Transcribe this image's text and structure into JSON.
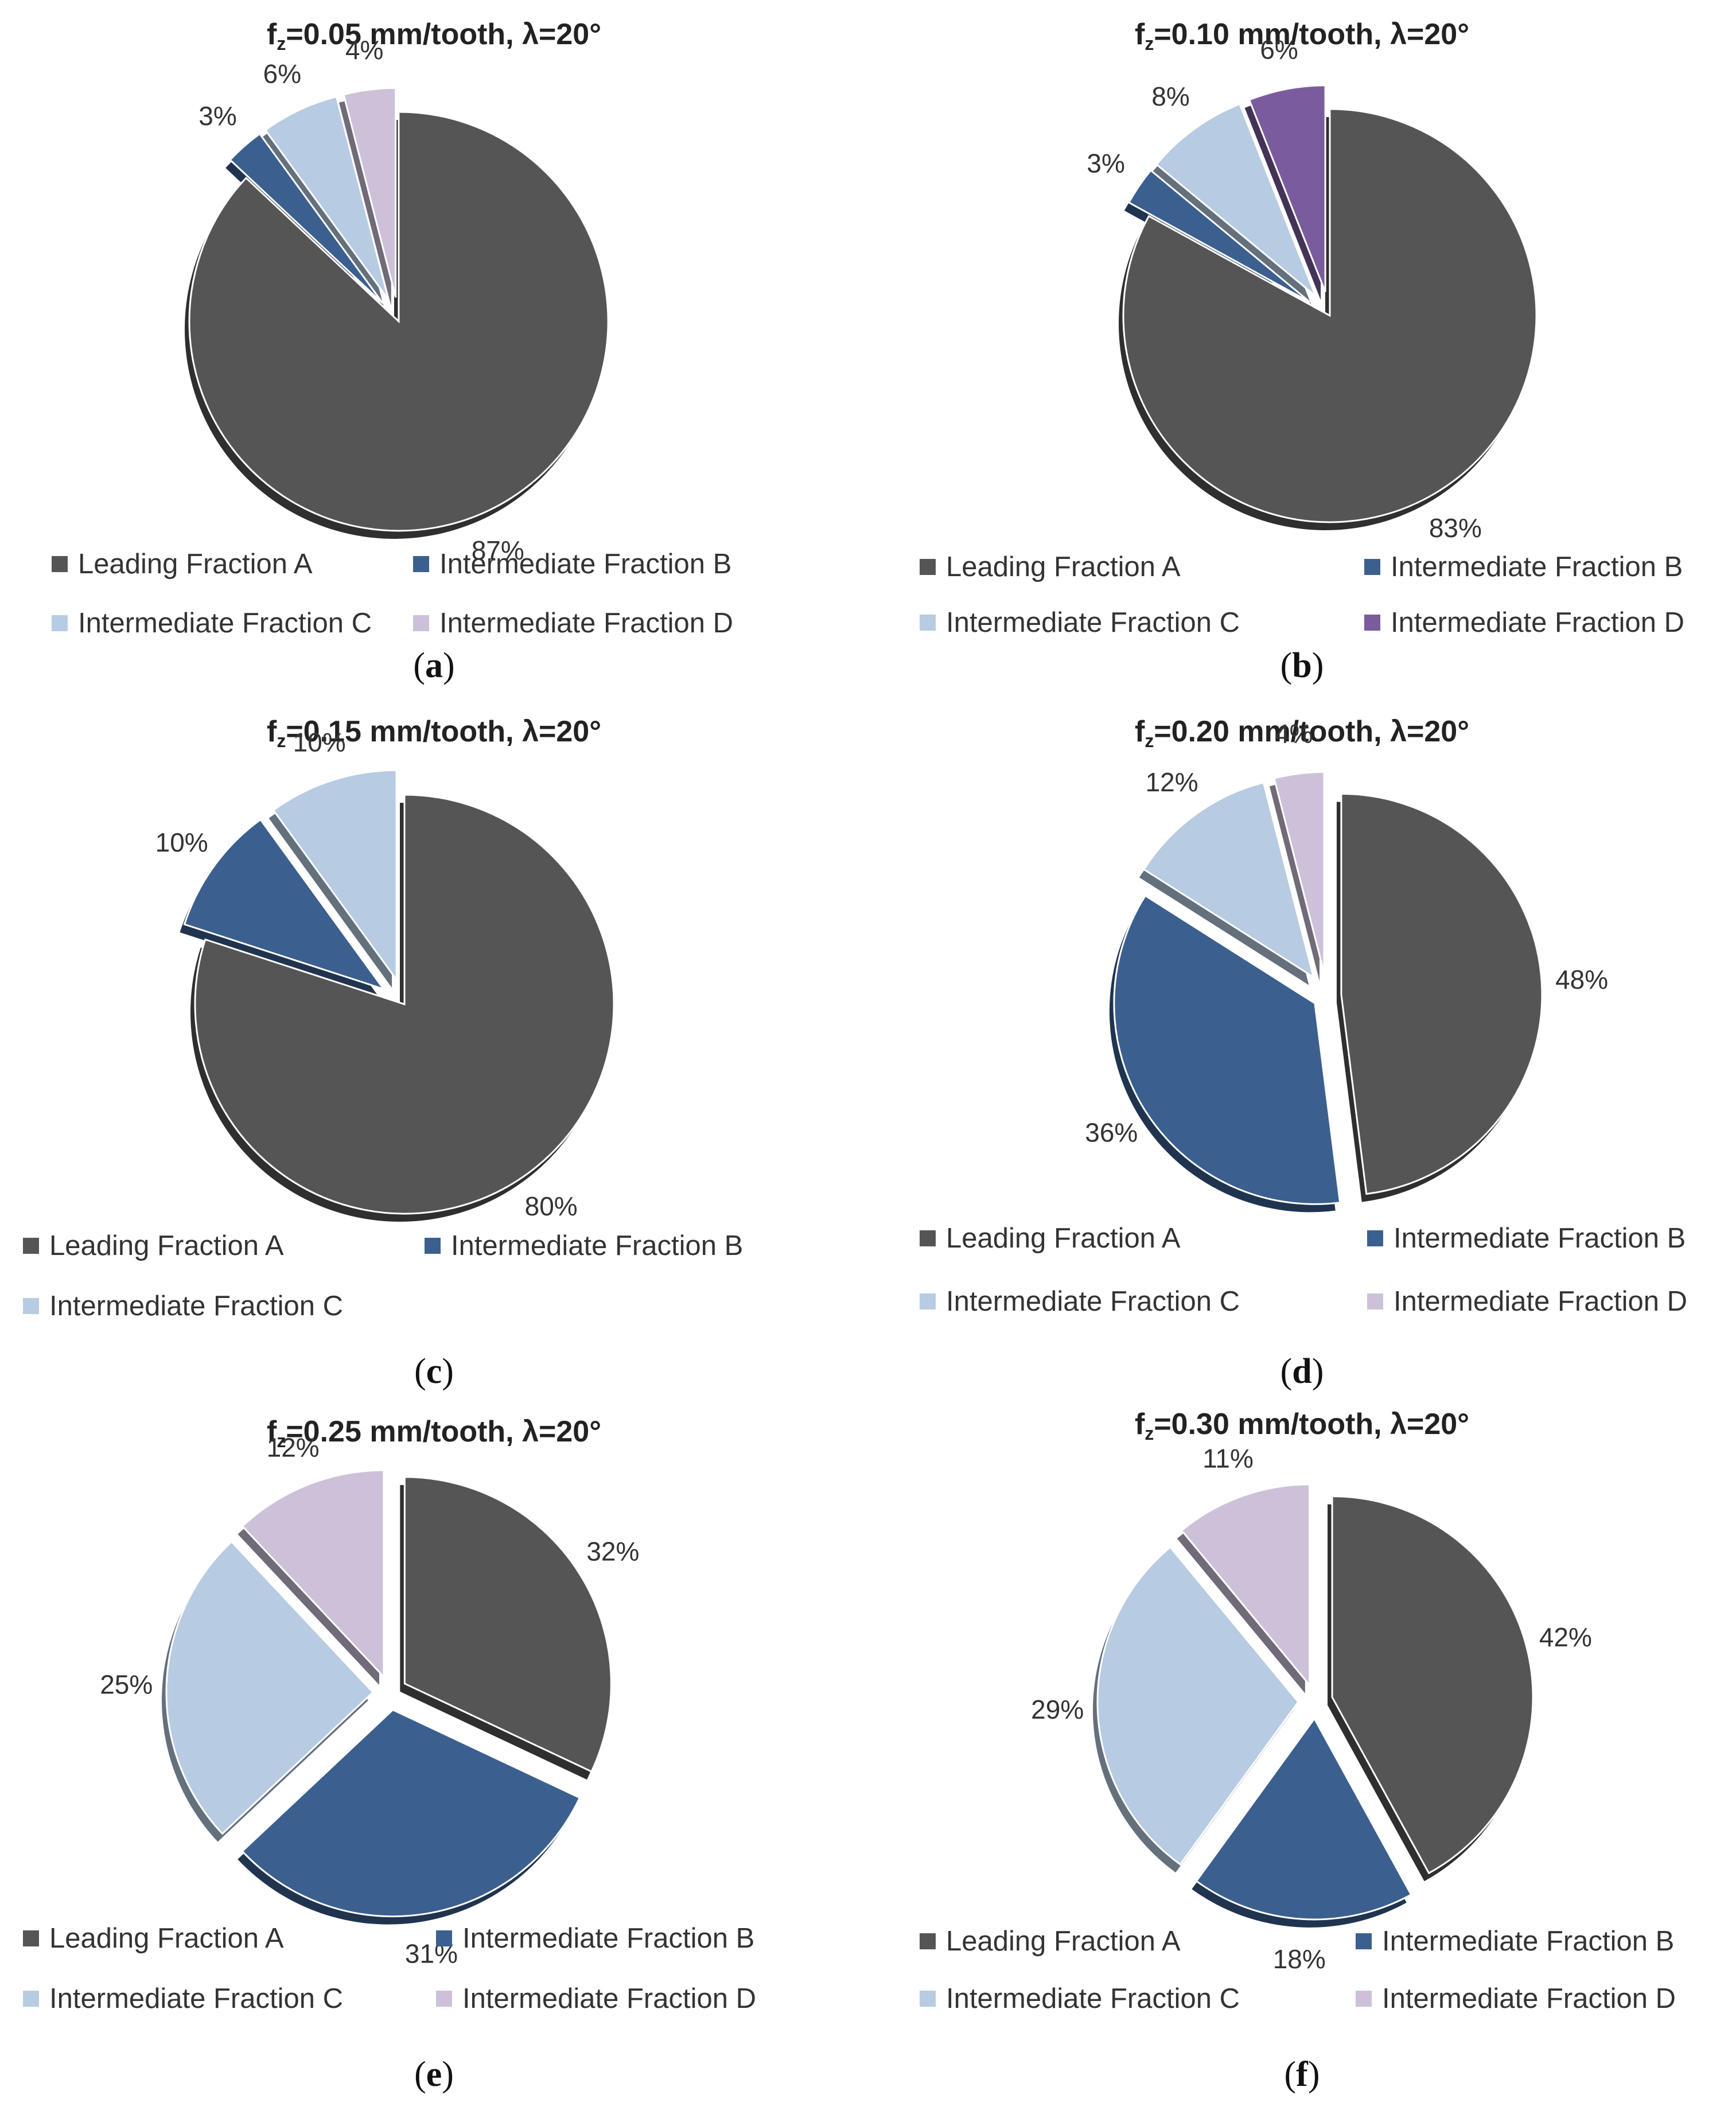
{
  "legend_colors": {
    "Leading Fraction A": "#555555",
    "Intermediate Fraction B": "#3b5f8f",
    "Intermediate Fraction C": "#b7cbe3",
    "Intermediate Fraction D": "#cdc1da",
    "Intermediate Fraction D (b)": "#7a5c9e"
  },
  "chart_data": [
    {
      "type": "pie",
      "panel": "a",
      "title_prefix": "f",
      "title_sub": "z",
      "title_rest": "=0.05 mm/tooth,  λ=20°",
      "caption": "a",
      "slices": [
        {
          "label": "Leading Fraction A",
          "value": 87,
          "text": "87%",
          "color": "#555555"
        },
        {
          "label": "Intermediate Fraction B",
          "value": 3,
          "text": "3%",
          "color": "#3b5f8f"
        },
        {
          "label": "Intermediate Fraction C",
          "value": 6,
          "text": "6%",
          "color": "#b7cbe3"
        },
        {
          "label": "Intermediate Fraction D",
          "value": 4,
          "text": "4%",
          "color": "#cdc1da"
        }
      ],
      "legend": [
        "Leading Fraction A",
        "Intermediate Fraction B",
        "Intermediate Fraction C",
        "Intermediate Fraction D"
      ]
    },
    {
      "type": "pie",
      "panel": "b",
      "title_prefix": "f",
      "title_sub": "z",
      "title_rest": "=0.10 mm/tooth,  λ=20°",
      "caption": "b",
      "slices": [
        {
          "label": "Leading Fraction A",
          "value": 83,
          "text": "83%",
          "color": "#555555"
        },
        {
          "label": "Intermediate Fraction B",
          "value": 3,
          "text": "3%",
          "color": "#3b5f8f"
        },
        {
          "label": "Intermediate Fraction C",
          "value": 8,
          "text": "8%",
          "color": "#b7cbe3"
        },
        {
          "label": "Intermediate Fraction D",
          "value": 6,
          "text": "6%",
          "color": "#7a5c9e"
        }
      ],
      "legend": [
        "Leading Fraction A",
        "Intermediate Fraction B",
        "Intermediate Fraction C",
        "Intermediate Fraction D"
      ]
    },
    {
      "type": "pie",
      "panel": "c",
      "title_prefix": "f",
      "title_sub": "z",
      "title_rest": "=0.15 mm/tooth,  λ=20°",
      "caption": "c",
      "slices": [
        {
          "label": "Leading Fraction A",
          "value": 80,
          "text": "80%",
          "color": "#555555"
        },
        {
          "label": "Intermediate Fraction B",
          "value": 10,
          "text": "10%",
          "color": "#3b5f8f"
        },
        {
          "label": "Intermediate Fraction C",
          "value": 10,
          "text": "10%",
          "color": "#b7cbe3"
        }
      ],
      "legend": [
        "Leading Fraction A",
        "Intermediate Fraction B",
        "Intermediate Fraction C"
      ]
    },
    {
      "type": "pie",
      "panel": "d",
      "title_prefix": "f",
      "title_sub": "z",
      "title_rest": "=0.20 mm/tooth,  λ=20°",
      "caption": "d",
      "slices": [
        {
          "label": "Leading Fraction A",
          "value": 48,
          "text": "48%",
          "color": "#555555"
        },
        {
          "label": "Intermediate Fraction B",
          "value": 36,
          "text": "36%",
          "color": "#3b5f8f"
        },
        {
          "label": "Intermediate Fraction C",
          "value": 12,
          "text": "12%",
          "color": "#b7cbe3"
        },
        {
          "label": "Intermediate Fraction D",
          "value": 4,
          "text": "4%",
          "color": "#cdc1da"
        }
      ],
      "legend": [
        "Leading Fraction A",
        "Intermediate Fraction B",
        "Intermediate Fraction C",
        "Intermediate Fraction D"
      ]
    },
    {
      "type": "pie",
      "panel": "e",
      "title_prefix": "f",
      "title_sub": "z",
      "title_rest": "=0.25 mm/tooth,  λ=20°",
      "caption": "e",
      "slices": [
        {
          "label": "Leading Fraction A",
          "value": 32,
          "text": "32%",
          "color": "#555555"
        },
        {
          "label": "Intermediate Fraction B",
          "value": 31,
          "text": "31%",
          "color": "#3b5f8f"
        },
        {
          "label": "Intermediate Fraction C",
          "value": 25,
          "text": "25%",
          "color": "#b7cbe3"
        },
        {
          "label": "Intermediate Fraction D",
          "value": 12,
          "text": "12%",
          "color": "#cdc1da"
        }
      ],
      "legend": [
        "Leading Fraction A",
        "Intermediate Fraction B",
        "Intermediate Fraction C",
        "Intermediate Fraction D"
      ]
    },
    {
      "type": "pie",
      "panel": "f",
      "title_prefix": "f",
      "title_sub": "z",
      "title_rest": "=0.30 mm/tooth,  λ=20°",
      "caption": "f",
      "slices": [
        {
          "label": "Leading Fraction A",
          "value": 42,
          "text": "42%",
          "color": "#555555"
        },
        {
          "label": "Intermediate Fraction B",
          "value": 18,
          "text": "18%",
          "color": "#3b5f8f"
        },
        {
          "label": "Intermediate Fraction C",
          "value": 29,
          "text": "29%",
          "color": "#b7cbe3"
        },
        {
          "label": "Intermediate Fraction D",
          "value": 11,
          "text": "11%",
          "color": "#cdc1da"
        }
      ],
      "legend": [
        "Leading Fraction A",
        "Intermediate Fraction B",
        "Intermediate Fraction C",
        "Intermediate Fraction D"
      ]
    }
  ]
}
